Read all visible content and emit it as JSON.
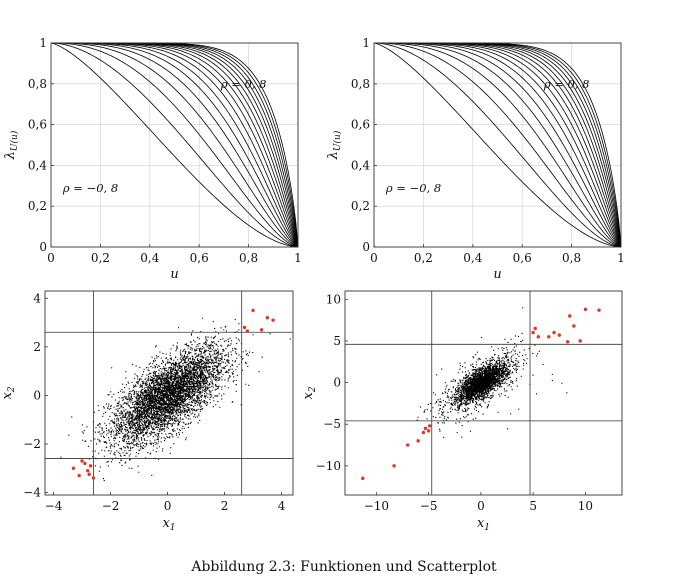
{
  "figure_caption": "Abbildung 2.3: Funktionen und Scatterplot",
  "colors": {
    "curve": "#000000",
    "grid": "#cfcfcf",
    "points": "#000000",
    "extreme": "#e8321e",
    "frame": "#333333"
  },
  "chart_data": [
    {
      "type": "line",
      "title": "",
      "xlabel": "u",
      "ylabel": "λU(u)",
      "xlim": [
        0,
        1
      ],
      "ylim": [
        0,
        1
      ],
      "xticks": [
        0,
        0.2,
        0.4,
        0.6,
        0.8,
        1
      ],
      "xtick_labels": [
        "0",
        "0,2",
        "0,4",
        "0,6",
        "0,8",
        "1"
      ],
      "yticks": [
        0,
        0.2,
        0.4,
        0.6,
        0.8,
        1
      ],
      "ytick_labels": [
        "0",
        "0,2",
        "0,4",
        "0,6",
        "0,8",
        "1"
      ],
      "grid": true,
      "rho_values": [
        -0.8,
        -0.7,
        -0.6,
        -0.5,
        -0.4,
        -0.3,
        -0.2,
        -0.1,
        0,
        0.1,
        0.2,
        0.3,
        0.4,
        0.5,
        0.6,
        0.7,
        0.8
      ],
      "annotations": [
        {
          "text": "ρ = 0, 8",
          "at": [
            0.78,
            0.78
          ]
        },
        {
          "text": "ρ = −0, 8",
          "at": [
            0.16,
            0.27
          ]
        }
      ]
    },
    {
      "type": "line",
      "title": "",
      "xlabel": "u",
      "ylabel": "λU(u)",
      "xlim": [
        0,
        1
      ],
      "ylim": [
        0,
        1
      ],
      "xticks": [
        0,
        0.2,
        0.4,
        0.6,
        0.8,
        1
      ],
      "xtick_labels": [
        "0",
        "0,2",
        "0,4",
        "0,6",
        "0,8",
        "1"
      ],
      "yticks": [
        0,
        0.2,
        0.4,
        0.6,
        0.8,
        1
      ],
      "ytick_labels": [
        "0",
        "0,2",
        "0,4",
        "0,6",
        "0,8",
        "1"
      ],
      "grid": true,
      "rho_values": [
        -0.8,
        -0.7,
        -0.6,
        -0.5,
        -0.4,
        -0.3,
        -0.2,
        -0.1,
        0,
        0.1,
        0.2,
        0.3,
        0.4,
        0.5,
        0.6,
        0.7,
        0.8
      ],
      "annotations": [
        {
          "text": "ρ = 0, 8",
          "at": [
            0.78,
            0.78
          ]
        },
        {
          "text": "ρ = −0, 8",
          "at": [
            0.16,
            0.27
          ]
        }
      ]
    },
    {
      "type": "scatter",
      "xlabel": "x1",
      "ylabel": "x2",
      "xlim": [
        -4.3,
        4.4
      ],
      "ylim": [
        -4.1,
        4.3
      ],
      "xticks": [
        -4,
        -2,
        0,
        2,
        4
      ],
      "xtick_labels": [
        "−4",
        "−2",
        "0",
        "2",
        "4"
      ],
      "yticks": [
        -4,
        -2,
        0,
        2,
        4
      ],
      "ytick_labels": [
        "−4",
        "−2",
        "0",
        "2",
        "4"
      ],
      "thresholds": {
        "x": [
          -2.6,
          2.6
        ],
        "y": [
          -2.6,
          2.6
        ]
      },
      "correlation": 0.7,
      "distribution": "gaussian",
      "n_points": 5000,
      "extreme_points": [
        [
          -3.3,
          -3.0
        ],
        [
          -3.1,
          -3.3
        ],
        [
          -2.9,
          -2.8
        ],
        [
          -2.8,
          -3.1
        ],
        [
          -2.7,
          -2.9
        ],
        [
          -2.6,
          -3.4
        ],
        [
          -3.0,
          -2.7
        ],
        [
          -2.75,
          -3.25
        ],
        [
          2.7,
          2.8
        ],
        [
          3.0,
          3.5
        ],
        [
          3.3,
          2.7
        ],
        [
          3.5,
          3.2
        ],
        [
          3.7,
          3.1
        ],
        [
          2.8,
          2.65
        ]
      ]
    },
    {
      "type": "scatter",
      "xlabel": "x1",
      "ylabel": "x2",
      "xlim": [
        -13,
        13.5
      ],
      "ylim": [
        -13.5,
        11
      ],
      "xticks": [
        -10,
        -5,
        0,
        5,
        10
      ],
      "xtick_labels": [
        "−10",
        "−5",
        "0",
        "5",
        "10"
      ],
      "yticks": [
        -10,
        -5,
        0,
        5,
        10
      ],
      "ytick_labels": [
        "−10",
        "−5",
        "0",
        "5",
        "10"
      ],
      "thresholds": {
        "x": [
          -4.7,
          4.7
        ],
        "y": [
          -4.6,
          4.6
        ]
      },
      "correlation": 0.7,
      "distribution": "student-t",
      "n_points": 3000,
      "extreme_points": [
        [
          -11.3,
          -11.5
        ],
        [
          -8.3,
          -10.0
        ],
        [
          -7.0,
          -7.5
        ],
        [
          -6.0,
          -7.0
        ],
        [
          -5.5,
          -6.0
        ],
        [
          -5.3,
          -5.5
        ],
        [
          -5.0,
          -5.8
        ],
        [
          -4.9,
          -5.2
        ],
        [
          5.0,
          6.0
        ],
        [
          5.2,
          6.5
        ],
        [
          5.5,
          5.5
        ],
        [
          6.5,
          5.5
        ],
        [
          7.0,
          6.0
        ],
        [
          7.5,
          5.7
        ],
        [
          8.3,
          4.9
        ],
        [
          8.5,
          8.0
        ],
        [
          8.9,
          6.8
        ],
        [
          9.5,
          5.0
        ],
        [
          10.0,
          8.8
        ],
        [
          11.3,
          8.7
        ]
      ]
    }
  ]
}
